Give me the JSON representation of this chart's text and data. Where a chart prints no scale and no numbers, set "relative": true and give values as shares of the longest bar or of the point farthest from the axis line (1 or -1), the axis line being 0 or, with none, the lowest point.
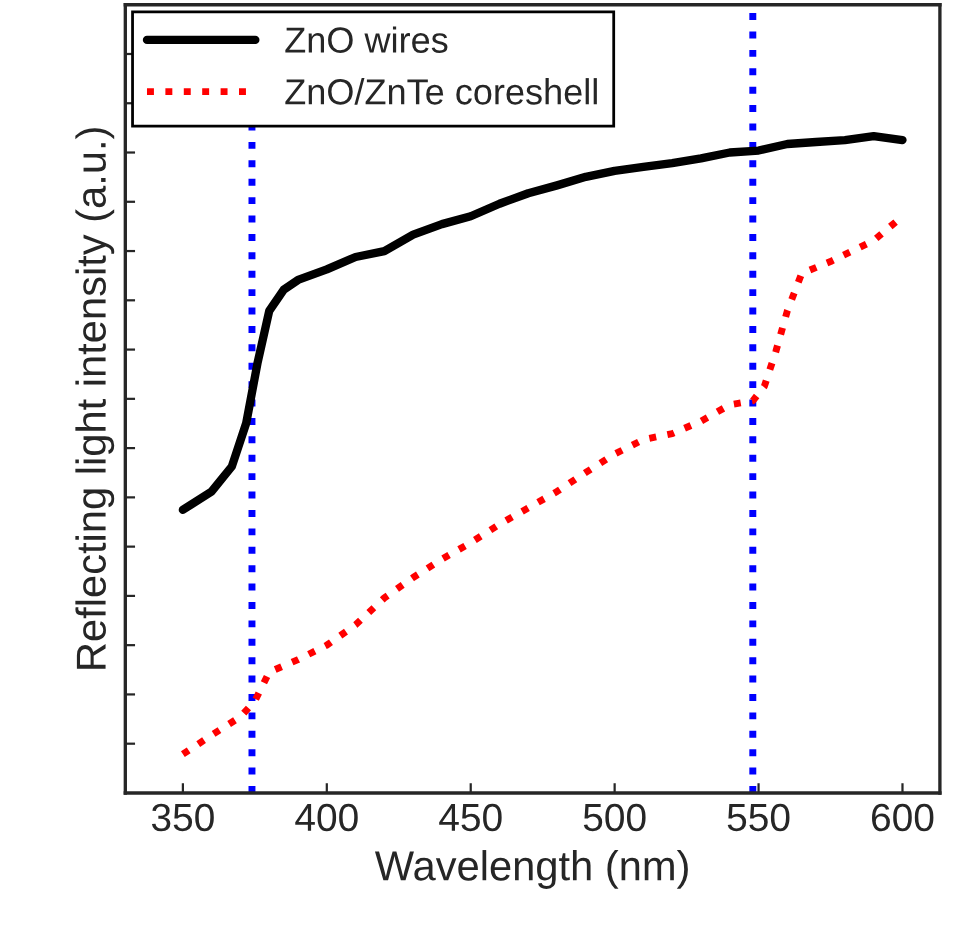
{
  "chart_data": {
    "type": "line",
    "xlabel": "Wavelength (nm)",
    "ylabel": "Reflecting light intensity (a.u.)",
    "relative": true,
    "xlim": [
      330,
      613
    ],
    "xticks": [
      350,
      400,
      450,
      500,
      550,
      600
    ],
    "tick_labels": "x",
    "grid": false,
    "legend": "top left",
    "series": [
      {
        "name": "ZnO wires",
        "color": "#000000",
        "line_style": "solid",
        "x": [
          350,
          360,
          367,
          372,
          376,
          380,
          385,
          390,
          400,
          410,
          420,
          430,
          440,
          450,
          460,
          470,
          480,
          490,
          500,
          510,
          520,
          530,
          540,
          550,
          560,
          570,
          580,
          590,
          600
        ],
        "values": [
          0.431,
          0.459,
          0.497,
          0.563,
          0.656,
          0.734,
          0.766,
          0.781,
          0.797,
          0.816,
          0.825,
          0.85,
          0.866,
          0.878,
          0.897,
          0.913,
          0.925,
          0.938,
          0.947,
          0.953,
          0.959,
          0.966,
          0.975,
          0.978,
          0.988,
          0.991,
          0.994,
          1.0,
          0.994
        ]
      },
      {
        "name": "ZnO/ZnTe coreshell",
        "color": "#ff0000",
        "line_style": "dotted",
        "x": [
          350,
          360,
          370,
          375,
          380,
          390,
          400,
          410,
          420,
          430,
          440,
          450,
          460,
          470,
          480,
          490,
          500,
          510,
          520,
          530,
          540,
          548,
          552,
          556,
          560,
          565,
          575,
          590,
          600
        ],
        "values": [
          0.059,
          0.088,
          0.116,
          0.14,
          0.184,
          0.203,
          0.225,
          0.256,
          0.297,
          0.328,
          0.356,
          0.381,
          0.409,
          0.434,
          0.459,
          0.488,
          0.516,
          0.538,
          0.547,
          0.566,
          0.591,
          0.597,
          0.619,
          0.672,
          0.734,
          0.791,
          0.809,
          0.841,
          0.878
        ]
      }
    ],
    "ref_lines": [
      {
        "axis": "x",
        "value": 374,
        "color": "#0000ff",
        "line_style": "dotted"
      },
      {
        "axis": "x",
        "value": 548,
        "color": "#0000ff",
        "line_style": "dotted"
      }
    ]
  }
}
